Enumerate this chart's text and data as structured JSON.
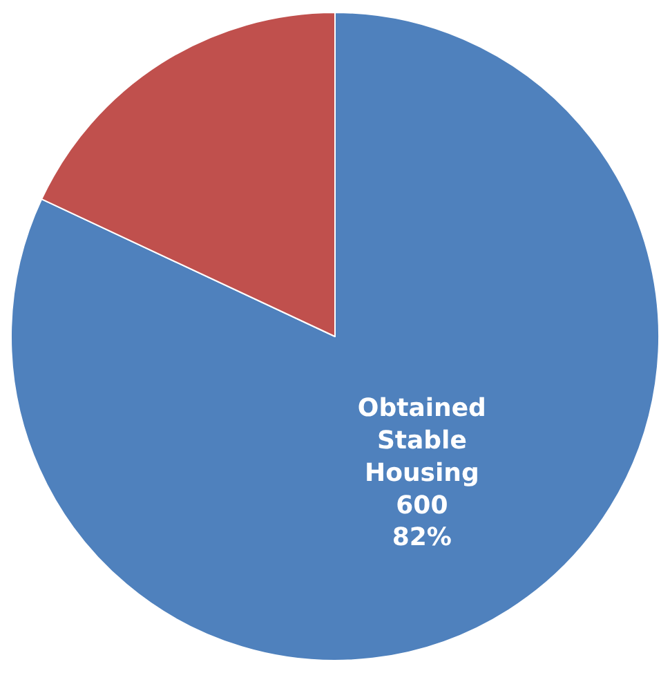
{
  "chart_data": {
    "type": "pie",
    "categories": [
      "Obtained Stable Housing",
      null
    ],
    "values": [
      600,
      132
    ],
    "value_labels": [
      "600\n82%",
      null
    ],
    "colors": [
      "#4f81bd",
      "#c0504d"
    ],
    "legend": false
  }
}
